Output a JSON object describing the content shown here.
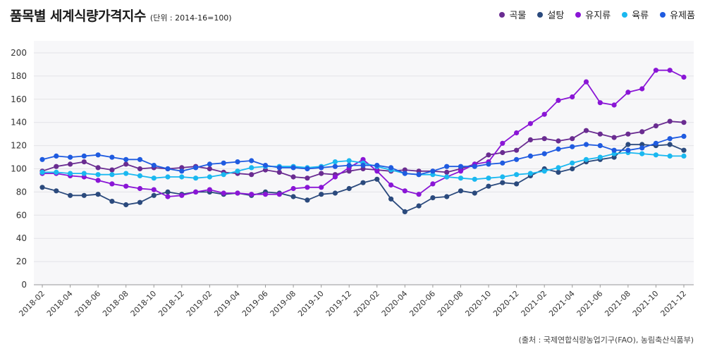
{
  "header": {
    "title": "품목별 세계식량가격지수",
    "unit_note": "(단위 : 2014-16=100)"
  },
  "source": "(출처 : 국제연합식량농업기구(FAO), 농림축산식품부)",
  "chart_data": {
    "type": "line",
    "title": "품목별 세계식량가격지수",
    "subtitle": "(단위 : 2014-16=100)",
    "xlabel": "",
    "ylabel": "",
    "ylim": [
      0,
      200
    ],
    "yticks": [
      0,
      20,
      40,
      60,
      80,
      100,
      120,
      140,
      160,
      180,
      200
    ],
    "grid": "horizontal",
    "legend_position": "top-right",
    "x": [
      "2018-02",
      "2018-03",
      "2018-04",
      "2018-05",
      "2018-06",
      "2018-07",
      "2018-08",
      "2018-09",
      "2018-10",
      "2018-11",
      "2018-12",
      "2019-01",
      "2019-02",
      "2019-03",
      "2019-04",
      "2019-05",
      "2019-06",
      "2019-07",
      "2019-08",
      "2019-09",
      "2019-10",
      "2019-11",
      "2019-12",
      "2020-01",
      "2020-02",
      "2020-03",
      "2020-04",
      "2020-05",
      "2020-06",
      "2020-07",
      "2020-08",
      "2020-09",
      "2020-10",
      "2020-11",
      "2020-12",
      "2021-01",
      "2021-02",
      "2021-03",
      "2021-04",
      "2021-05",
      "2021-06",
      "2021-07",
      "2021-08",
      "2021-09",
      "2021-10",
      "2021-11",
      "2021-12"
    ],
    "xtick_labels": [
      "2018-02",
      "2018-04",
      "2018-06",
      "2018-08",
      "2018-10",
      "2018-12",
      "2019-02",
      "2019-04",
      "2019-06",
      "2019-08",
      "2019-10",
      "2019-12",
      "2020-02",
      "2020-04",
      "2020-06",
      "2020-08",
      "2020-10",
      "2020-12",
      "2021-02",
      "2021-04",
      "2021-06",
      "2021-08",
      "2021-10",
      "2021-12"
    ],
    "series": [
      {
        "name": "곡물",
        "color": "#6a2c91",
        "values": [
          98,
          102,
          104,
          106,
          101,
          99,
          104,
          100,
          101,
          100,
          101,
          102,
          100,
          97,
          96,
          95,
          99,
          97,
          93,
          92,
          96,
          95,
          98,
          100,
          99,
          98,
          99,
          98,
          98,
          97,
          100,
          104,
          112,
          114,
          116,
          125,
          126,
          124,
          126,
          133,
          130,
          127,
          130,
          132,
          137,
          141,
          140
        ]
      },
      {
        "name": "설탕",
        "color": "#2b4a7d",
        "values": [
          84,
          81,
          77,
          77,
          78,
          72,
          69,
          71,
          77,
          80,
          78,
          80,
          80,
          78,
          79,
          77,
          80,
          79,
          76,
          73,
          78,
          79,
          83,
          88,
          91,
          74,
          63,
          68,
          75,
          76,
          81,
          79,
          85,
          88,
          87,
          94,
          100,
          97,
          100,
          106,
          108,
          110,
          121,
          121,
          120,
          121,
          116
        ]
      },
      {
        "name": "유지류",
        "color": "#8a16d6",
        "values": [
          96,
          96,
          94,
          93,
          90,
          87,
          85,
          83,
          82,
          76,
          77,
          80,
          82,
          79,
          79,
          78,
          78,
          78,
          83,
          84,
          84,
          93,
          101,
          108,
          98,
          86,
          81,
          78,
          87,
          93,
          98,
          104,
          106,
          122,
          131,
          139,
          147,
          159,
          162,
          175,
          157,
          155,
          166,
          169,
          185,
          185,
          179
        ]
      },
      {
        "name": "육류",
        "color": "#1ab8f0",
        "values": [
          97,
          97,
          96,
          96,
          95,
          95,
          96,
          94,
          92,
          93,
          93,
          92,
          93,
          95,
          98,
          101,
          102,
          102,
          102,
          101,
          102,
          106,
          107,
          105,
          102,
          99,
          96,
          95,
          95,
          93,
          92,
          91,
          92,
          93,
          95,
          96,
          98,
          101,
          105,
          108,
          110,
          113,
          114,
          113,
          112,
          111,
          111
        ]
      },
      {
        "name": "유제품",
        "color": "#1f5be0",
        "values": [
          108,
          111,
          110,
          111,
          112,
          110,
          108,
          108,
          103,
          100,
          98,
          101,
          104,
          105,
          106,
          107,
          103,
          101,
          101,
          100,
          101,
          102,
          103,
          103,
          103,
          101,
          96,
          95,
          98,
          102,
          102,
          102,
          104,
          105,
          108,
          111,
          113,
          117,
          119,
          121,
          120,
          116,
          116,
          118,
          122,
          126,
          128
        ]
      }
    ]
  }
}
